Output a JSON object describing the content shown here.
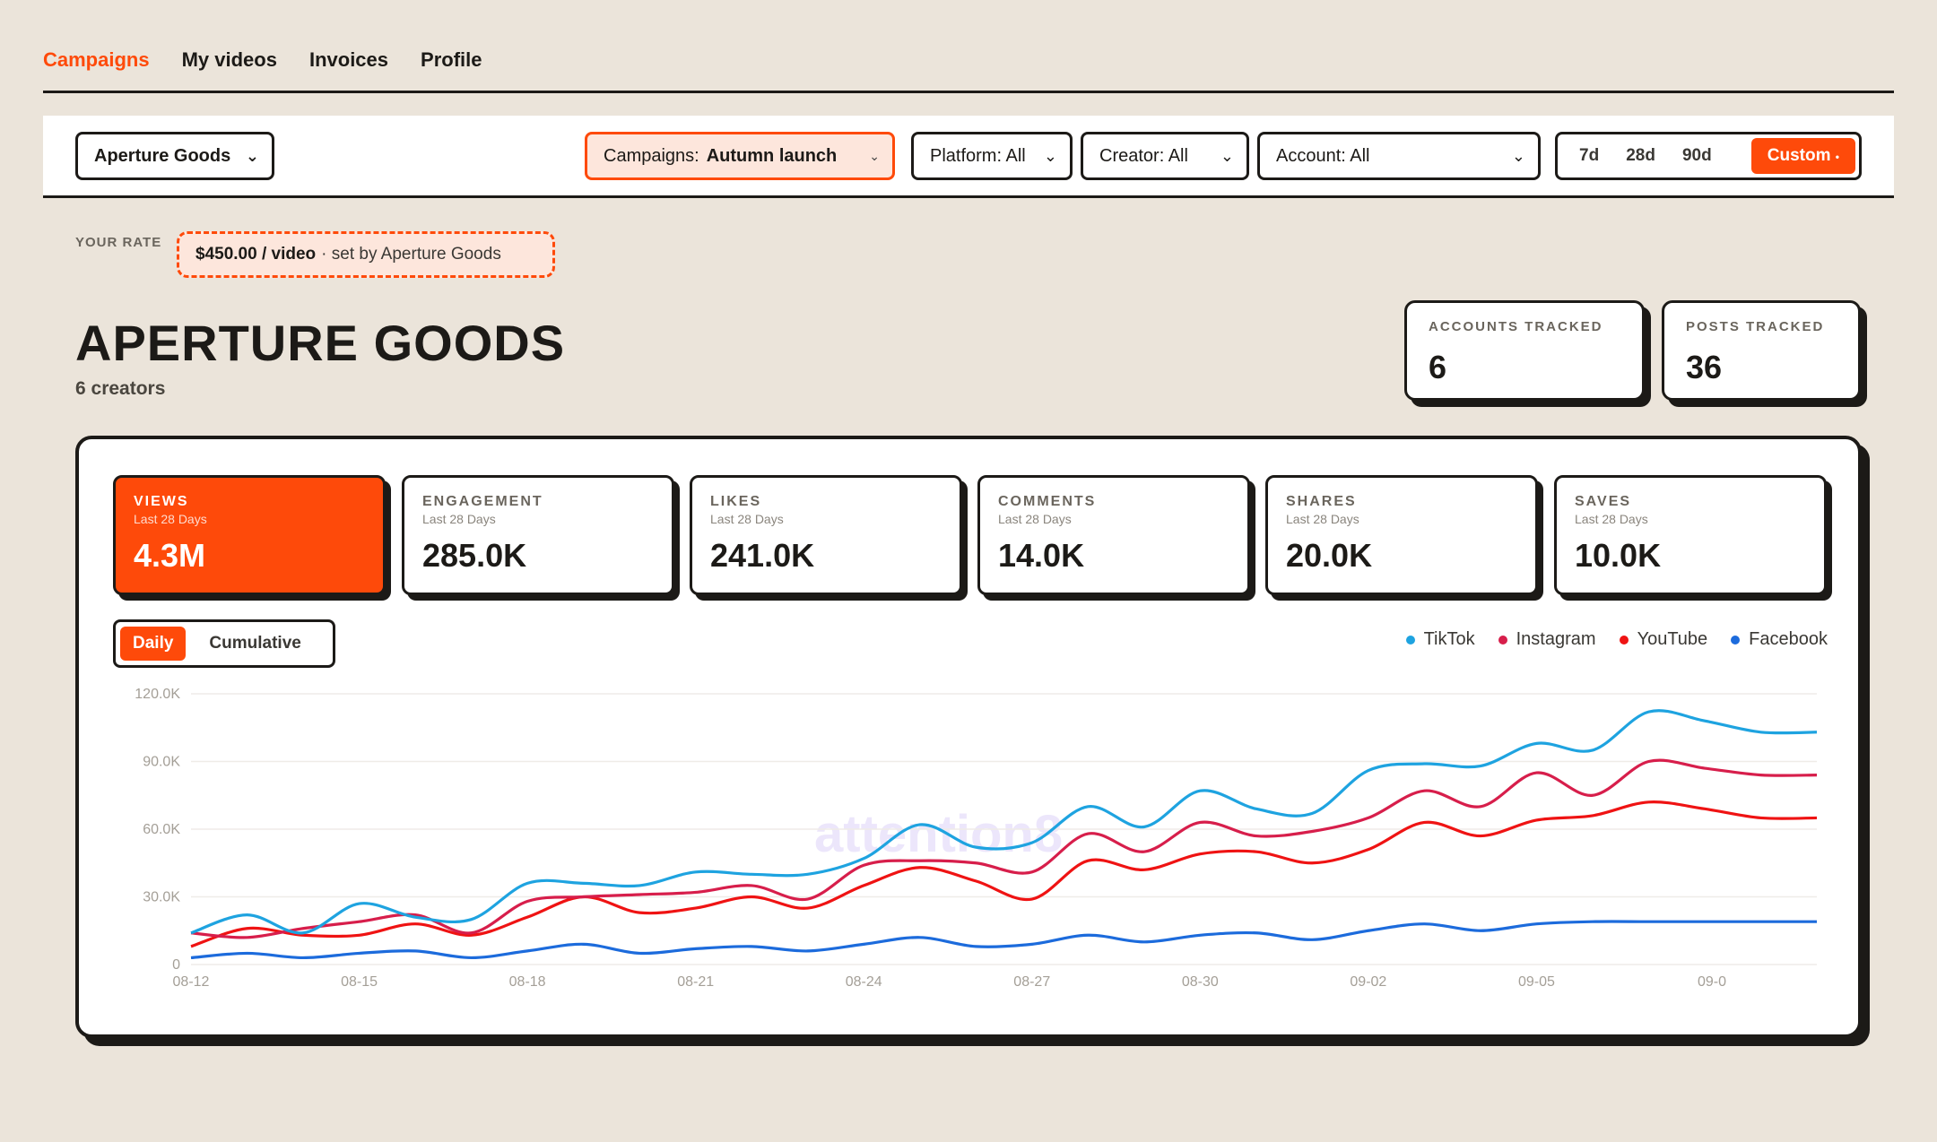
{
  "nav": {
    "items": [
      {
        "label": "Campaigns",
        "active": true
      },
      {
        "label": "My videos",
        "active": false
      },
      {
        "label": "Invoices",
        "active": false
      },
      {
        "label": "Profile",
        "active": false
      }
    ]
  },
  "filters": {
    "brand": "Aperture Goods",
    "campaigns_label": "Campaigns:",
    "campaigns_value": "Autumn launch",
    "platform": "Platform: All",
    "creator": "Creator: All",
    "account": "Account: All",
    "ranges": [
      "7d",
      "28d",
      "90d"
    ],
    "custom": "Custom"
  },
  "rate": {
    "label": "YOUR RATE",
    "amount": "$450.00 / video",
    "by": "· set by Aperture Goods"
  },
  "header": {
    "title": "APERTURE GOODS",
    "subtitle": "6 creators"
  },
  "stats": {
    "accounts_label": "ACCOUNTS TRACKED",
    "accounts_value": "6",
    "posts_label": "POSTS TRACKED",
    "posts_value": "36"
  },
  "kpis": [
    {
      "label": "VIEWS",
      "sub": "Last 28 Days",
      "value": "4.3M",
      "active": true
    },
    {
      "label": "ENGAGEMENT",
      "sub": "Last 28 Days",
      "value": "285.0K",
      "active": false
    },
    {
      "label": "LIKES",
      "sub": "Last 28 Days",
      "value": "241.0K",
      "active": false
    },
    {
      "label": "COMMENTS",
      "sub": "Last 28 Days",
      "value": "14.0K",
      "active": false
    },
    {
      "label": "SHARES",
      "sub": "Last 28 Days",
      "value": "20.0K",
      "active": false
    },
    {
      "label": "SAVES",
      "sub": "Last 28 Days",
      "value": "10.0K",
      "active": false
    }
  ],
  "toggle": {
    "daily": "Daily",
    "cumulative": "Cumulative"
  },
  "watermark": "attention8",
  "colors": {
    "accent": "#fe4a0a",
    "ink": "#1c1a17",
    "background": "#ebe4da"
  },
  "chart_data": {
    "type": "line",
    "x": [
      "08-12",
      "08-13",
      "08-14",
      "08-15",
      "08-16",
      "08-17",
      "08-18",
      "08-19",
      "08-20",
      "08-21",
      "08-22",
      "08-23",
      "08-24",
      "08-25",
      "08-26",
      "08-27",
      "08-28",
      "08-29",
      "08-30",
      "08-31",
      "09-01",
      "09-02",
      "09-03",
      "09-04",
      "09-05",
      "09-06",
      "09-07",
      "09-08",
      "09-09",
      "09-10"
    ],
    "x_tick_labels": [
      "08-12",
      "08-15",
      "08-18",
      "08-21",
      "08-24",
      "08-27",
      "08-30",
      "09-02",
      "09-05",
      "09-0"
    ],
    "y_tick_labels": [
      "0",
      "30.0K",
      "60.0K",
      "90.0K",
      "120.0K"
    ],
    "ylim": [
      0,
      120000
    ],
    "grid": true,
    "legend_position": "top-right",
    "series": [
      {
        "name": "TikTok",
        "color": "#1ea3e0",
        "values": [
          14000,
          22000,
          14000,
          27000,
          21000,
          20000,
          36000,
          36000,
          35000,
          41000,
          40000,
          40000,
          47000,
          62000,
          52000,
          54000,
          70000,
          61000,
          77000,
          69000,
          67000,
          86000,
          89000,
          88000,
          98000,
          95000,
          112000,
          108000,
          103000,
          103000
        ]
      },
      {
        "name": "Instagram",
        "color": "#d71e4b",
        "values": [
          14000,
          12000,
          16000,
          19000,
          22000,
          14000,
          28000,
          30000,
          31000,
          32000,
          35000,
          29000,
          44000,
          46000,
          45000,
          41000,
          58000,
          50000,
          63000,
          57000,
          59000,
          65000,
          77000,
          70000,
          85000,
          75000,
          90000,
          87000,
          84000,
          84000
        ]
      },
      {
        "name": "YouTube",
        "color": "#ef1313",
        "values": [
          8000,
          16000,
          13000,
          13000,
          18000,
          13000,
          21000,
          30000,
          23000,
          25000,
          30000,
          25000,
          35000,
          43000,
          37000,
          29000,
          46000,
          42000,
          49000,
          50000,
          45000,
          51000,
          63000,
          57000,
          64000,
          66000,
          72000,
          69000,
          65000,
          65000
        ]
      },
      {
        "name": "Facebook",
        "color": "#1c6bdc",
        "values": [
          3000,
          5000,
          3000,
          5000,
          6000,
          3000,
          6000,
          9000,
          5000,
          7000,
          8000,
          6000,
          9000,
          12000,
          8000,
          9000,
          13000,
          10000,
          13000,
          14000,
          11000,
          15000,
          18000,
          15000,
          18000,
          19000,
          19000,
          19000,
          19000,
          19000
        ]
      }
    ]
  }
}
